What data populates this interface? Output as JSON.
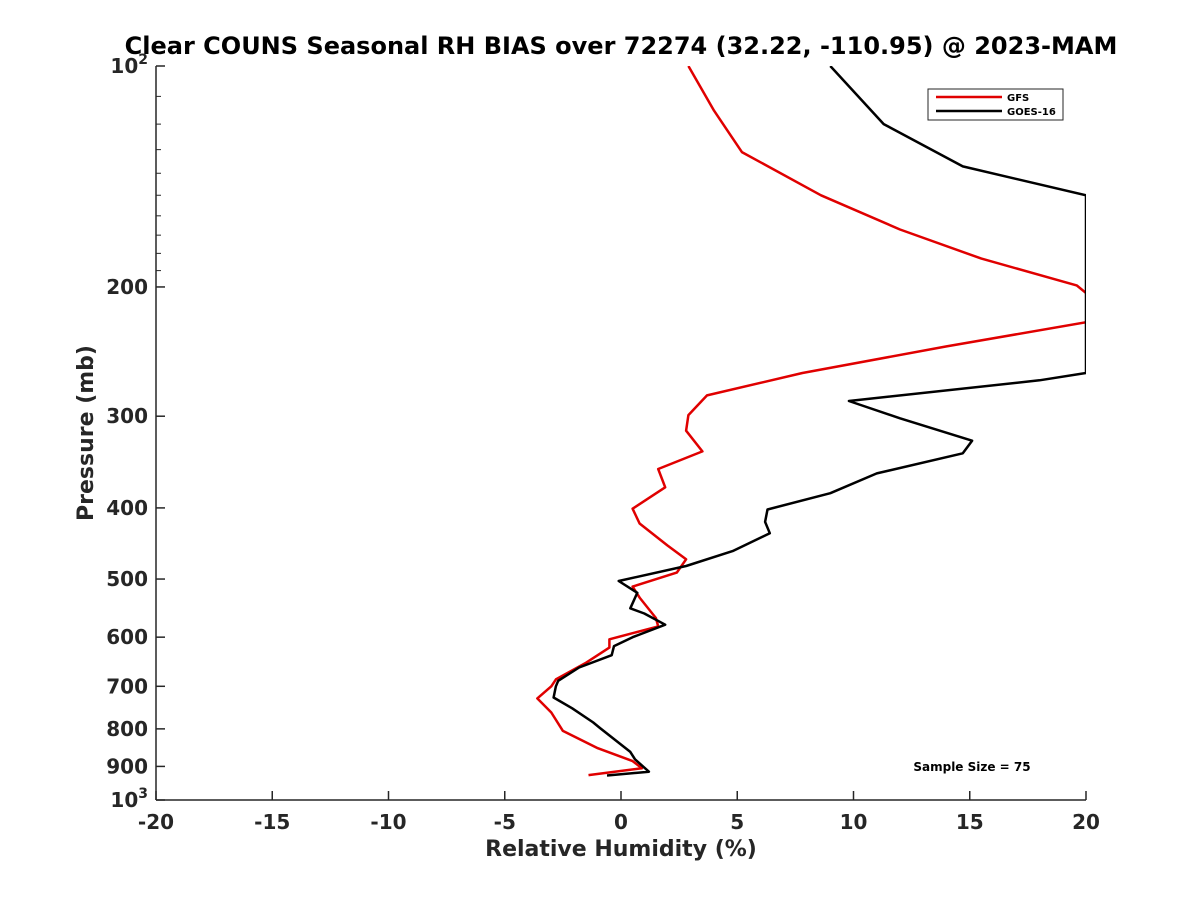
{
  "chart_data": {
    "type": "line",
    "title": "Clear COUNS Seasonal RH BIAS over 72274 (32.22, -110.95) @ 2023-MAM",
    "xlabel": "Relative Humidity (%)",
    "ylabel": "Pressure (mb)",
    "xlim": [
      -20,
      20
    ],
    "ylim": [
      100,
      1000
    ],
    "y_scale": "log",
    "y_reversed": true,
    "x_ticks": [
      -20,
      -15,
      -10,
      -5,
      0,
      5,
      10,
      15,
      20
    ],
    "x_tick_labels": [
      "-20",
      "-15",
      "-10",
      "-5",
      "0",
      "5",
      "10",
      "15",
      "20"
    ],
    "y_ticks": [
      {
        "value": 100,
        "base": "10",
        "exp": "2"
      },
      {
        "value": 200,
        "label": "200"
      },
      {
        "value": 300,
        "label": "300"
      },
      {
        "value": 400,
        "label": "400"
      },
      {
        "value": 500,
        "label": "500"
      },
      {
        "value": 600,
        "label": "600"
      },
      {
        "value": 700,
        "label": "700"
      },
      {
        "value": 800,
        "label": "800"
      },
      {
        "value": 900,
        "label": "900"
      },
      {
        "value": 1000,
        "base": "10",
        "exp": "3"
      }
    ],
    "grid": false,
    "legend_position": "top-right",
    "annotation": "Sample Size = 75",
    "series": [
      {
        "name": "GFS",
        "color": "#e00000",
        "points": [
          [
            2.9,
            100
          ],
          [
            4.0,
            115
          ],
          [
            5.2,
            131
          ],
          [
            8.6,
            150
          ],
          [
            12.0,
            167
          ],
          [
            15.5,
            183
          ],
          [
            19.6,
            199
          ],
          [
            20.5,
            210
          ],
          [
            20.5,
            222
          ],
          [
            14.0,
            241
          ],
          [
            7.8,
            262
          ],
          [
            3.7,
            281
          ],
          [
            2.9,
            299
          ],
          [
            2.8,
            314
          ],
          [
            3.5,
            335
          ],
          [
            1.6,
            354
          ],
          [
            1.9,
            375
          ],
          [
            0.5,
            401
          ],
          [
            0.8,
            420
          ],
          [
            2.0,
            450
          ],
          [
            2.8,
            470
          ],
          [
            2.4,
            490
          ],
          [
            0.5,
            512
          ],
          [
            0.8,
            530
          ],
          [
            1.5,
            565
          ],
          [
            1.6,
            580
          ],
          [
            -0.5,
            604
          ],
          [
            -0.5,
            620
          ],
          [
            -1.5,
            650
          ],
          [
            -2.8,
            685
          ],
          [
            -3.0,
            700
          ],
          [
            -3.6,
            727
          ],
          [
            -3.0,
            760
          ],
          [
            -2.5,
            805
          ],
          [
            -1.0,
            850
          ],
          [
            0.5,
            885
          ],
          [
            0.9,
            905
          ],
          [
            -1.4,
            925
          ]
        ]
      },
      {
        "name": "GOES-16",
        "color": "#000000",
        "points": [
          [
            9.0,
            100
          ],
          [
            11.3,
            120
          ],
          [
            14.7,
            137
          ],
          [
            20.0,
            150
          ],
          [
            20.0,
            262
          ],
          [
            18.0,
            268
          ],
          [
            9.8,
            286
          ],
          [
            12.0,
            302
          ],
          [
            15.1,
            324
          ],
          [
            14.7,
            337
          ],
          [
            11.0,
            359
          ],
          [
            9.0,
            382
          ],
          [
            6.3,
            402
          ],
          [
            6.2,
            418
          ],
          [
            6.4,
            433
          ],
          [
            4.8,
            458
          ],
          [
            2.8,
            480
          ],
          [
            -0.1,
            503
          ],
          [
            0.7,
            522
          ],
          [
            0.4,
            548
          ],
          [
            1.0,
            557
          ],
          [
            1.9,
            577
          ],
          [
            0.5,
            600
          ],
          [
            -0.3,
            617
          ],
          [
            -0.4,
            635
          ],
          [
            -1.8,
            660
          ],
          [
            -2.7,
            688
          ],
          [
            -2.8,
            700
          ],
          [
            -2.9,
            725
          ],
          [
            -2.1,
            750
          ],
          [
            -1.2,
            784
          ],
          [
            -0.9,
            798
          ],
          [
            0.4,
            860
          ],
          [
            0.6,
            880
          ],
          [
            1.2,
            915
          ],
          [
            -0.6,
            926
          ]
        ]
      }
    ]
  }
}
